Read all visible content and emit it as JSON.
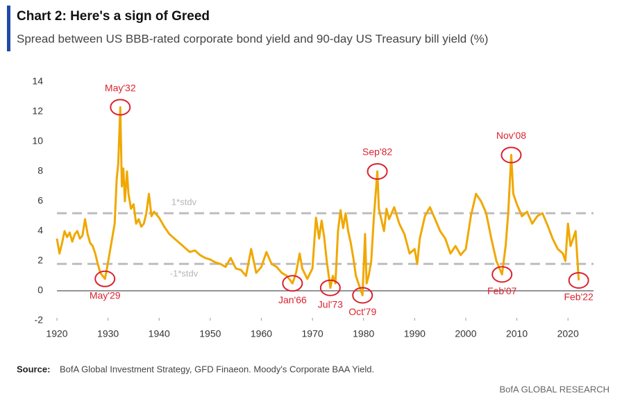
{
  "chart_data": {
    "type": "line",
    "title": "Chart 2: Here's a sign of Greed",
    "subtitle": "Spread between US BBB-rated corporate bond yield and 90-day US Treasury bill yield (%)",
    "source_label": "Source:",
    "source": "BofA Global Investment Strategy, GFD Finaeon. Moody's Corporate BAA Yield.",
    "footer": "BofA GLOBAL RESEARCH",
    "xlim": [
      1920,
      2025
    ],
    "xticks": [
      1920,
      1930,
      1940,
      1950,
      1960,
      1970,
      1980,
      1990,
      2000,
      2010,
      2020
    ],
    "ylim": [
      -2,
      14
    ],
    "yticks": [
      -2,
      0,
      2,
      4,
      6,
      8,
      10,
      12,
      14
    ],
    "reference_lines": [
      {
        "label": "1*stdv",
        "value": 5.2
      },
      {
        "label": "-1*stdv",
        "value": 1.8
      }
    ],
    "annotations": [
      {
        "label": "May'29",
        "x": 1929.4,
        "y": 0.8,
        "position": "below"
      },
      {
        "label": "May'32",
        "x": 1932.4,
        "y": 12.3,
        "position": "above"
      },
      {
        "label": "Jan'66",
        "x": 1966.1,
        "y": 0.5,
        "position": "below"
      },
      {
        "label": "Jul'73",
        "x": 1973.5,
        "y": 0.2,
        "position": "below"
      },
      {
        "label": "Oct'79",
        "x": 1979.8,
        "y": -0.3,
        "position": "below"
      },
      {
        "label": "Sep'82",
        "x": 1982.7,
        "y": 8.0,
        "position": "above"
      },
      {
        "label": "Feb'07",
        "x": 2007.1,
        "y": 1.1,
        "position": "below"
      },
      {
        "label": "Nov'08",
        "x": 2008.9,
        "y": 9.1,
        "position": "above"
      },
      {
        "label": "Feb'22",
        "x": 2022.1,
        "y": 0.7,
        "position": "below"
      }
    ],
    "series": [
      {
        "color": "#f0a800",
        "x": [
          1920,
          1920.5,
          1921,
          1921.5,
          1922,
          1922.5,
          1923,
          1923.5,
          1924,
          1924.5,
          1925,
          1925.5,
          1926,
          1926.5,
          1927,
          1927.5,
          1928,
          1928.5,
          1929.4,
          1929.8,
          1930.3,
          1930.8,
          1931.3,
          1931.7,
          1932,
          1932.4,
          1932.7,
          1933,
          1933.3,
          1933.7,
          1934,
          1934.5,
          1935,
          1935.5,
          1936,
          1936.5,
          1937,
          1937.5,
          1938,
          1938.5,
          1939,
          1940,
          1941,
          1942,
          1943,
          1944,
          1945,
          1946,
          1947,
          1948,
          1949,
          1950,
          1951,
          1952,
          1953,
          1954,
          1955,
          1956,
          1957,
          1958,
          1959,
          1960,
          1961,
          1962,
          1963,
          1964,
          1965,
          1966.1,
          1966.8,
          1967.5,
          1968,
          1969,
          1970,
          1970.7,
          1971.3,
          1971.8,
          1972.3,
          1972.8,
          1973.5,
          1974,
          1974.5,
          1975,
          1975.5,
          1976,
          1976.5,
          1977,
          1977.5,
          1978,
          1978.5,
          1979.8,
          1980.3,
          1980.6,
          1981,
          1981.5,
          1982,
          1982.7,
          1983,
          1984,
          1984.5,
          1985,
          1986,
          1987,
          1988,
          1989,
          1990,
          1990.5,
          1991,
          1992,
          1993,
          1994,
          1995,
          1996,
          1997,
          1998,
          1999,
          2000,
          2001,
          2002,
          2003,
          2004,
          2005,
          2006,
          2007.1,
          2007.8,
          2008.3,
          2008.9,
          2009.3,
          2010,
          2011,
          2012,
          2013,
          2014,
          2015,
          2016,
          2017,
          2018,
          2019,
          2019.5,
          2020,
          2020.5,
          2021,
          2021.5,
          2022.1
        ],
        "values": [
          3.5,
          2.5,
          3.2,
          4.0,
          3.6,
          3.9,
          3.3,
          3.8,
          4.0,
          3.5,
          3.7,
          4.8,
          3.8,
          3.2,
          3.0,
          2.5,
          1.8,
          1.2,
          0.8,
          1.5,
          2.5,
          3.5,
          4.5,
          7.5,
          8.5,
          12.3,
          7.0,
          8.2,
          6.0,
          8.0,
          6.5,
          5.5,
          5.8,
          4.5,
          4.8,
          4.3,
          4.5,
          5.2,
          6.5,
          5.0,
          5.3,
          4.9,
          4.3,
          3.8,
          3.5,
          3.2,
          2.9,
          2.6,
          2.7,
          2.4,
          2.2,
          2.1,
          1.9,
          1.8,
          1.6,
          2.2,
          1.5,
          1.4,
          1.0,
          2.8,
          1.2,
          1.6,
          2.6,
          1.8,
          1.6,
          1.2,
          1.0,
          0.5,
          1.2,
          2.5,
          1.5,
          0.8,
          1.5,
          4.9,
          3.5,
          4.7,
          3.6,
          2.0,
          0.2,
          1.0,
          0.5,
          4.0,
          5.4,
          4.2,
          5.2,
          4.0,
          3.2,
          2.2,
          1.0,
          -0.3,
          3.8,
          0.5,
          1.0,
          2.0,
          4.8,
          8.0,
          5.5,
          4.0,
          5.5,
          4.8,
          5.6,
          4.5,
          3.8,
          2.5,
          2.8,
          1.8,
          3.5,
          5.0,
          5.6,
          4.8,
          4.0,
          3.5,
          2.5,
          3.0,
          2.4,
          2.8,
          5.0,
          6.5,
          6.0,
          5.2,
          3.5,
          2.0,
          1.1,
          3.0,
          5.2,
          9.1,
          6.5,
          5.8,
          5.0,
          5.3,
          4.5,
          5.0,
          5.2,
          4.4,
          3.5,
          2.8,
          2.5,
          2.0,
          4.5,
          3.0,
          3.5,
          4.0,
          0.7
        ]
      }
    ]
  }
}
